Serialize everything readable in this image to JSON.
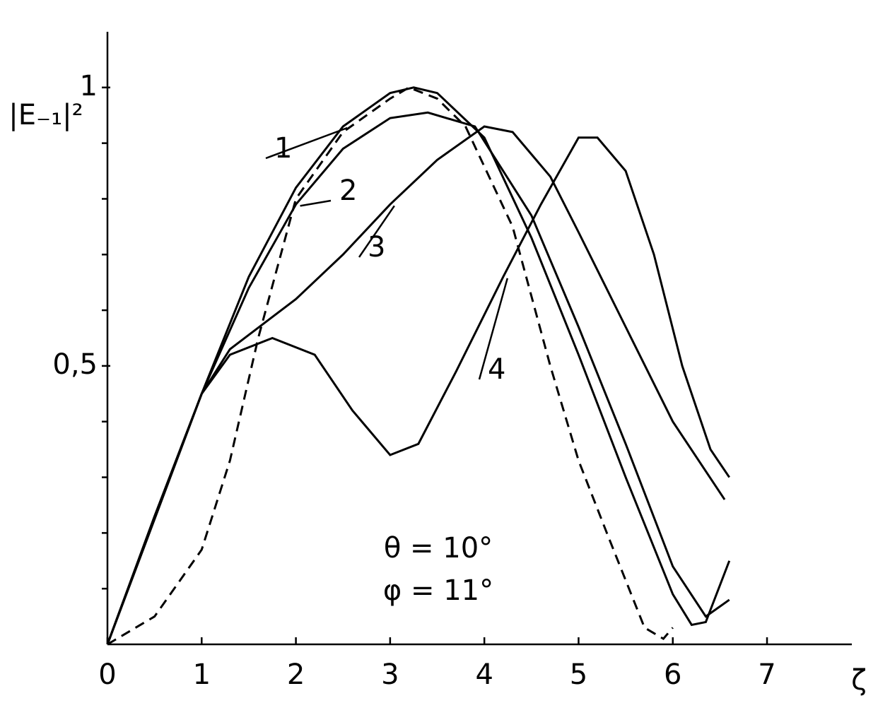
{
  "chart_data": {
    "type": "line",
    "y_label": "|E₋₁|²",
    "x_label": "ζ",
    "annotations": [
      "θ = 10°",
      "φ = 11°"
    ],
    "xlim": [
      0,
      7.9
    ],
    "ylim": [
      0,
      1.1
    ],
    "xticks": [
      0,
      1,
      2,
      3,
      4,
      5,
      6,
      7
    ],
    "yticks": [
      {
        "value": 0.5,
        "label": "0,5"
      },
      {
        "value": 1,
        "label": "1"
      }
    ],
    "yminor_ticks": [
      0.1,
      0.2,
      0.3,
      0.4,
      0.6,
      0.7,
      0.8,
      0.9
    ],
    "series": [
      {
        "name": "1",
        "color": "#000",
        "dashed": false,
        "x": [
          0,
          0.5,
          1,
          1.5,
          2,
          2.5,
          3,
          3.25,
          3.5,
          4,
          4.5,
          5,
          5.5,
          6,
          6.2,
          6.35,
          6.6
        ],
        "values": [
          0,
          0.23,
          0.45,
          0.66,
          0.82,
          0.93,
          0.99,
          1.0,
          0.99,
          0.91,
          0.73,
          0.52,
          0.3,
          0.09,
          0.035,
          0.04,
          0.15
        ]
      },
      {
        "name": "2",
        "color": "#000",
        "dashed": false,
        "x": [
          0,
          0.5,
          1,
          1.5,
          2,
          2.5,
          3,
          3.4,
          3.9,
          4.5,
          5,
          5.5,
          6,
          6.35,
          6.6
        ],
        "values": [
          0,
          0.23,
          0.45,
          0.64,
          0.79,
          0.89,
          0.945,
          0.955,
          0.93,
          0.77,
          0.57,
          0.36,
          0.14,
          0.05,
          0.08
        ]
      },
      {
        "name": "3",
        "color": "#000",
        "dashed": false,
        "x": [
          0,
          1,
          1.3,
          2,
          2.5,
          3,
          3.5,
          4,
          4.3,
          4.7,
          5,
          5.5,
          6,
          6.55
        ],
        "values": [
          0,
          0.45,
          0.53,
          0.62,
          0.7,
          0.79,
          0.87,
          0.93,
          0.92,
          0.84,
          0.74,
          0.57,
          0.4,
          0.26
        ]
      },
      {
        "name": "4",
        "color": "#000",
        "dashed": false,
        "x": [
          0,
          1,
          1.3,
          1.75,
          2.2,
          2.6,
          3,
          3.3,
          3.7,
          4.2,
          4.6,
          5,
          5.2,
          5.5,
          5.8,
          6.1,
          6.4,
          6.6
        ],
        "values": [
          0,
          0.45,
          0.52,
          0.55,
          0.52,
          0.42,
          0.34,
          0.36,
          0.49,
          0.66,
          0.79,
          0.91,
          0.91,
          0.85,
          0.7,
          0.5,
          0.35,
          0.3
        ]
      },
      {
        "color": "#000",
        "dashed": true,
        "x": [
          0,
          0.5,
          1,
          1.3,
          1.6,
          2,
          2.5,
          3,
          3.2,
          3.5,
          3.8,
          4.3,
          4.7,
          5,
          5.3,
          5.7,
          5.9,
          6.0
        ],
        "values": [
          0,
          0.05,
          0.17,
          0.33,
          0.55,
          0.8,
          0.92,
          0.98,
          1.0,
          0.98,
          0.93,
          0.75,
          0.5,
          0.33,
          0.2,
          0.03,
          0.01,
          0.03
        ]
      }
    ]
  }
}
